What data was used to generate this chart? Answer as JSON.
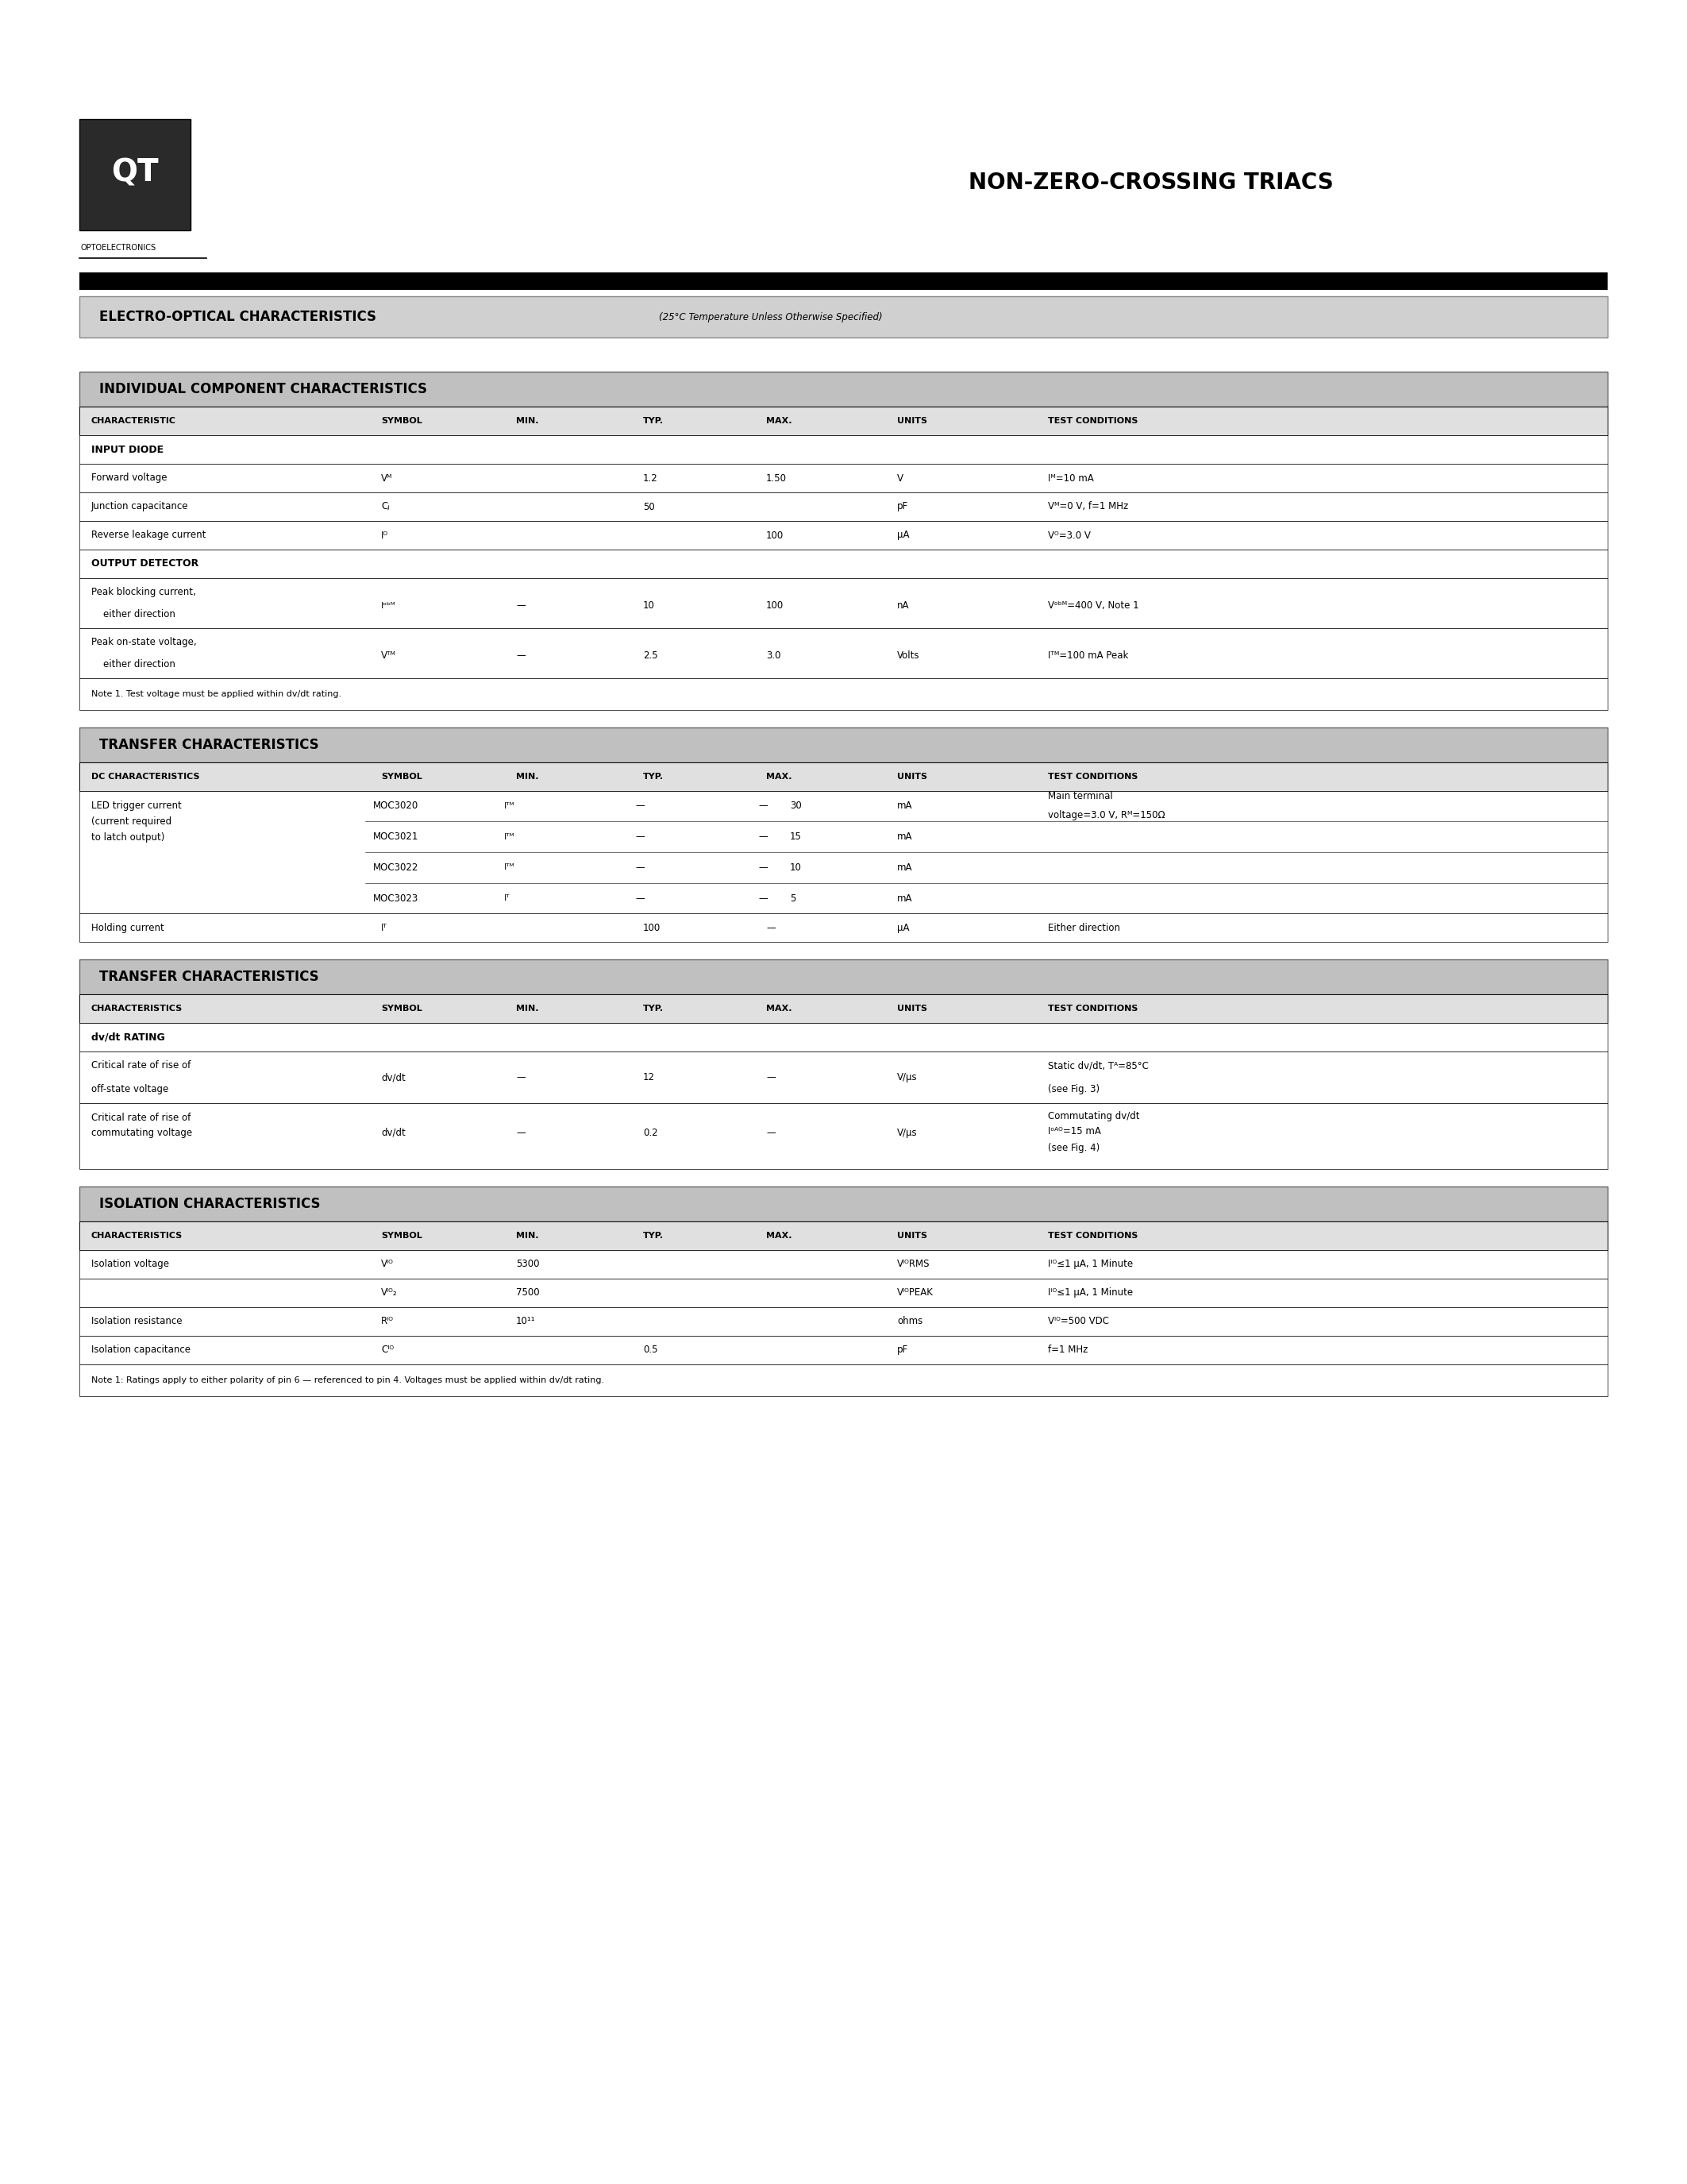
{
  "page_bg": "#ffffff",
  "logo_text": "QT",
  "logo_subtext": "OPTOELECTRONICS",
  "main_title": "NON-ZERO-CROSSING TRIACS",
  "section_title_1": "ELECTRO-OPTICAL CHARACTERISTICS",
  "section_title_1_sub": "(25°C Temperature Unless Otherwise Specified)",
  "table1_title": "INDIVIDUAL COMPONENT CHARACTERISTICS",
  "table1_header": [
    "CHARACTERISTIC",
    "SYMBOL",
    "MIN.",
    "TYP.",
    "MAX.",
    "UNITS",
    "TEST CONDITIONS"
  ],
  "table2_title": "TRANSFER CHARACTERISTICS",
  "table2_header": [
    "DC CHARACTERISTICS",
    "SYMBOL",
    "MIN.",
    "TYP.",
    "MAX.",
    "UNITS",
    "TEST CONDITIONS"
  ],
  "table3_title": "TRANSFER CHARACTERISTICS",
  "table3_header": [
    "CHARACTERISTICS",
    "SYMBOL",
    "MIN.",
    "TYP.",
    "MAX.",
    "UNITS",
    "TEST CONDITIONS"
  ],
  "table4_title": "ISOLATION CHARACTERISTICS",
  "table4_header": [
    "CHARACTERISTICS",
    "SYMBOL",
    "MIN.",
    "TYP.",
    "MAX.",
    "UNITS",
    "TEST CONDITIONS"
  ]
}
